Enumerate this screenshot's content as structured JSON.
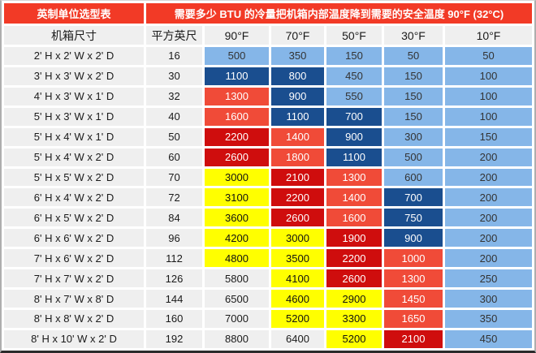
{
  "chart_data": {
    "type": "table",
    "title_left": "英制单位选型表",
    "title_right": "需要多少 BTU 的冷量把机箱内部温度降到需要的安全温度 90°F (32°C)",
    "columns": [
      "机箱尺寸",
      "平方英尺",
      "90°F",
      "70°F",
      "50°F",
      "30°F",
      "10°F"
    ],
    "colors": {
      "lb": "#85B6E8",
      "db": "#1A4E8F",
      "or": "#F04B38",
      "rd": "#CF0D0D",
      "ye": "#FFFF00",
      "no": "#EFEFEF",
      "header_red": "#F23A26",
      "cell_gray": "#EFEFEF"
    },
    "text_colors": {
      "lb": "#333333",
      "db": "#FFFFFF",
      "or": "#FFFFFF",
      "rd": "#FFFFFF",
      "ye": "#111111",
      "no": "#1A1A1A"
    },
    "rows": [
      {
        "size": "2' H x 2' W x 2' D",
        "sqft": "16",
        "cells": [
          {
            "v": "500",
            "c": "lb"
          },
          {
            "v": "350",
            "c": "lb"
          },
          {
            "v": "150",
            "c": "lb"
          },
          {
            "v": "50",
            "c": "lb"
          },
          {
            "v": "50",
            "c": "lb"
          }
        ]
      },
      {
        "size": "3' H x 3' W x 2' D",
        "sqft": "30",
        "cells": [
          {
            "v": "1100",
            "c": "db"
          },
          {
            "v": "800",
            "c": "db"
          },
          {
            "v": "450",
            "c": "lb"
          },
          {
            "v": "150",
            "c": "lb"
          },
          {
            "v": "100",
            "c": "lb"
          }
        ]
      },
      {
        "size": "4' H x 3' W x 1' D",
        "sqft": "32",
        "cells": [
          {
            "v": "1300",
            "c": "or"
          },
          {
            "v": "900",
            "c": "db"
          },
          {
            "v": "550",
            "c": "lb"
          },
          {
            "v": "150",
            "c": "lb"
          },
          {
            "v": "100",
            "c": "lb"
          }
        ]
      },
      {
        "size": "5' H x 3' W x 1' D",
        "sqft": "40",
        "cells": [
          {
            "v": "1600",
            "c": "or"
          },
          {
            "v": "1100",
            "c": "db"
          },
          {
            "v": "700",
            "c": "db"
          },
          {
            "v": "150",
            "c": "lb"
          },
          {
            "v": "100",
            "c": "lb"
          }
        ]
      },
      {
        "size": "5' H x 4' W x 1' D",
        "sqft": "50",
        "cells": [
          {
            "v": "2200",
            "c": "rd"
          },
          {
            "v": "1400",
            "c": "or"
          },
          {
            "v": "900",
            "c": "db"
          },
          {
            "v": "300",
            "c": "lb"
          },
          {
            "v": "150",
            "c": "lb"
          }
        ]
      },
      {
        "size": "5' H x 4' W x 2' D",
        "sqft": "60",
        "cells": [
          {
            "v": "2600",
            "c": "rd"
          },
          {
            "v": "1800",
            "c": "or"
          },
          {
            "v": "1100",
            "c": "db"
          },
          {
            "v": "500",
            "c": "lb"
          },
          {
            "v": "200",
            "c": "lb"
          }
        ]
      },
      {
        "size": "5' H x 5' W x 2' D",
        "sqft": "70",
        "cells": [
          {
            "v": "3000",
            "c": "ye"
          },
          {
            "v": "2100",
            "c": "rd"
          },
          {
            "v": "1300",
            "c": "or"
          },
          {
            "v": "600",
            "c": "lb"
          },
          {
            "v": "200",
            "c": "lb"
          }
        ]
      },
      {
        "size": "6' H x 4' W x 2' D",
        "sqft": "72",
        "cells": [
          {
            "v": "3100",
            "c": "ye"
          },
          {
            "v": "2200",
            "c": "rd"
          },
          {
            "v": "1400",
            "c": "or"
          },
          {
            "v": "700",
            "c": "db"
          },
          {
            "v": "200",
            "c": "lb"
          }
        ]
      },
      {
        "size": "6' H x 5' W x 2' D",
        "sqft": "84",
        "cells": [
          {
            "v": "3600",
            "c": "ye"
          },
          {
            "v": "2600",
            "c": "rd"
          },
          {
            "v": "1600",
            "c": "or"
          },
          {
            "v": "750",
            "c": "db"
          },
          {
            "v": "200",
            "c": "lb"
          }
        ]
      },
      {
        "size": "6' H x 6' W x 2' D",
        "sqft": "96",
        "cells": [
          {
            "v": "4200",
            "c": "ye"
          },
          {
            "v": "3000",
            "c": "ye"
          },
          {
            "v": "1900",
            "c": "rd"
          },
          {
            "v": "900",
            "c": "db"
          },
          {
            "v": "200",
            "c": "lb"
          }
        ]
      },
      {
        "size": "7' H x 6' W x 2' D",
        "sqft": "112",
        "cells": [
          {
            "v": "4800",
            "c": "ye"
          },
          {
            "v": "3500",
            "c": "ye"
          },
          {
            "v": "2200",
            "c": "rd"
          },
          {
            "v": "1000",
            "c": "or"
          },
          {
            "v": "200",
            "c": "lb"
          }
        ]
      },
      {
        "size": "7' H x 7' W x 2' D",
        "sqft": "126",
        "cells": [
          {
            "v": "5800",
            "c": "no"
          },
          {
            "v": "4100",
            "c": "ye"
          },
          {
            "v": "2600",
            "c": "rd"
          },
          {
            "v": "1300",
            "c": "or"
          },
          {
            "v": "250",
            "c": "lb"
          }
        ]
      },
      {
        "size": "8' H x 7' W x 8' D",
        "sqft": "144",
        "cells": [
          {
            "v": "6500",
            "c": "no"
          },
          {
            "v": "4600",
            "c": "ye"
          },
          {
            "v": "2900",
            "c": "ye"
          },
          {
            "v": "1450",
            "c": "or"
          },
          {
            "v": "300",
            "c": "lb"
          }
        ]
      },
      {
        "size": "8' H x 8' W x 2' D",
        "sqft": "160",
        "cells": [
          {
            "v": "7000",
            "c": "no"
          },
          {
            "v": "5200",
            "c": "ye"
          },
          {
            "v": "3300",
            "c": "ye"
          },
          {
            "v": "1650",
            "c": "or"
          },
          {
            "v": "350",
            "c": "lb"
          }
        ]
      },
      {
        "size": "8' H x 10' W x 2' D",
        "sqft": "192",
        "cells": [
          {
            "v": "8800",
            "c": "no"
          },
          {
            "v": "6400",
            "c": "no"
          },
          {
            "v": "5200",
            "c": "ye"
          },
          {
            "v": "2100",
            "c": "rd"
          },
          {
            "v": "450",
            "c": "lb"
          }
        ]
      }
    ]
  }
}
